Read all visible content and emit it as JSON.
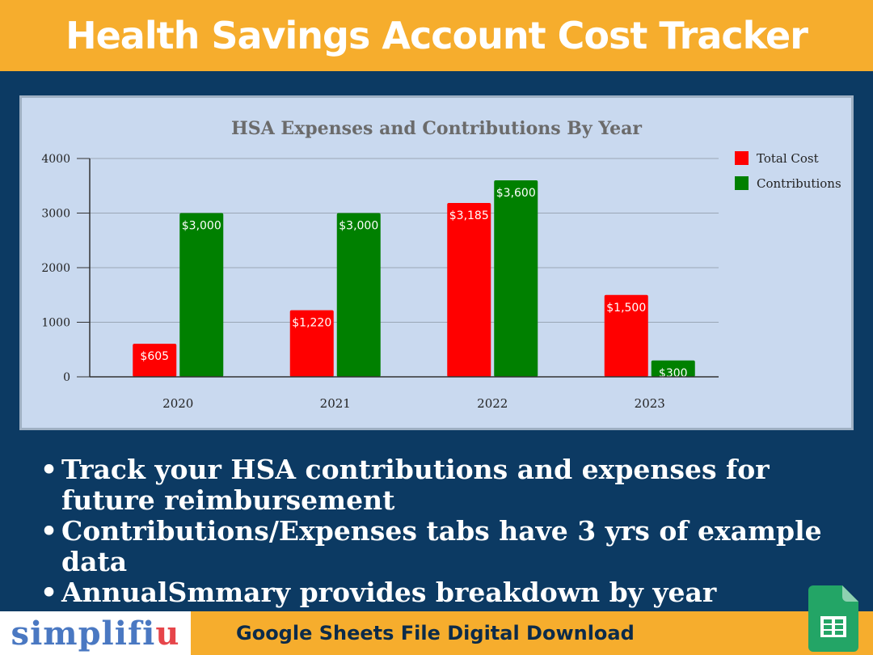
{
  "header": {
    "title": "Health Savings Account Cost Tracker"
  },
  "chart_data": {
    "type": "bar",
    "title": "HSA Expenses and Contributions By Year",
    "categories": [
      "2020",
      "2021",
      "2022",
      "2023"
    ],
    "series": [
      {
        "name": "Total Cost",
        "color": "#ff0000",
        "values": [
          605,
          1220,
          3185,
          1500
        ],
        "labels": [
          "$605",
          "$1,220",
          "$3,185",
          "$1,500"
        ]
      },
      {
        "name": "Contributions",
        "color": "#008000",
        "values": [
          3000,
          3000,
          3600,
          300
        ],
        "labels": [
          "$3,000",
          "$3,000",
          "$3,600",
          "$300"
        ]
      }
    ],
    "y_ticks": [
      "0",
      "1000",
      "2000",
      "3000",
      "4000"
    ],
    "ylim": [
      0,
      4000
    ],
    "grid": true,
    "legend_position": "right"
  },
  "bullets": [
    "Track your HSA contributions and expenses for future reimbursement",
    "Contributions/Expenses tabs have 3 yrs of example data",
    "AnnualSmmary provides breakdown by year"
  ],
  "footer": {
    "brand_main": "simplifi",
    "brand_accent": "u",
    "text": "Google Sheets File Digital Download"
  },
  "icon": "google-sheets-icon"
}
